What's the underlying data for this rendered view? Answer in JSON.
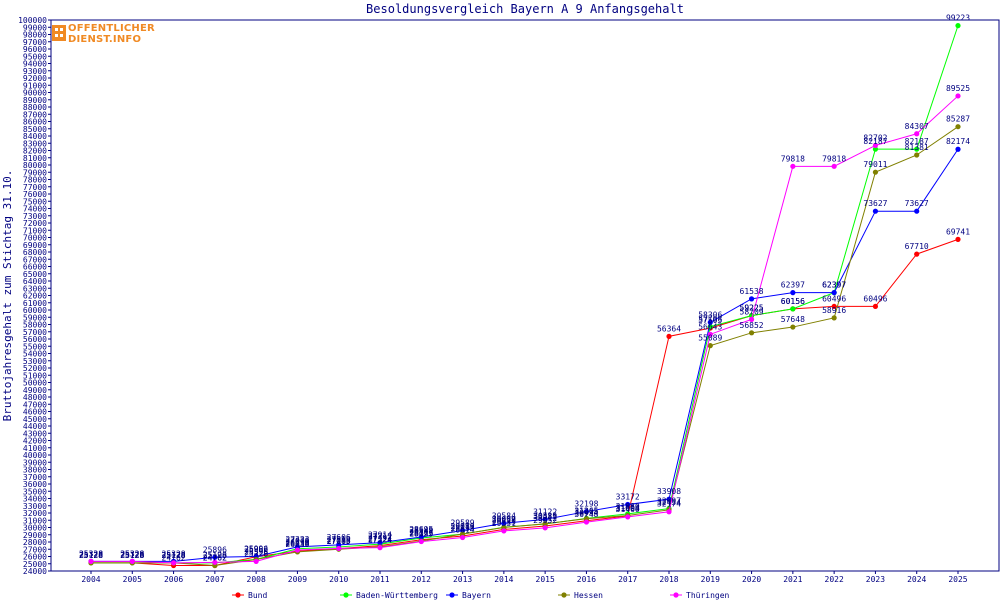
{
  "logo": {
    "line1": "OFFENTLICHER",
    "line2": "DIENST.INFO"
  },
  "chart_data": {
    "type": "line",
    "title": "Besoldungsvergleich Bayern A 9 Anfangsgehalt",
    "xlabel": "",
    "ylabel": "Bruttojahresgehalt zum Stichtag 31.10.",
    "ylim": [
      24000,
      100000
    ],
    "ytick_step": 1000,
    "grid": false,
    "legend_position": "bottom",
    "x": [
      "2004",
      "2005",
      "2006",
      "2007",
      "2008",
      "2009",
      "2010",
      "2011",
      "2012",
      "2013",
      "2014",
      "2015",
      "2016",
      "2017",
      "2018",
      "2019",
      "2020",
      "2021",
      "2022",
      "2023",
      "2024",
      "2025"
    ],
    "series": [
      {
        "name": "Bund",
        "color": "#ff0000",
        "values": [
          25128,
          25128,
          24762,
          24762,
          25962,
          26738,
          27086,
          27497,
          28307,
          28833,
          29735,
          30212,
          30934,
          31604,
          56364,
          57505,
          59225,
          60156,
          60496,
          60496,
          67710,
          69741
        ]
      },
      {
        "name": "Baden-Württemberg",
        "color": "#00ff00",
        "values": [
          25128,
          25128,
          25128,
          25128,
          25598,
          27070,
          27319,
          27712,
          28549,
          29089,
          30039,
          30489,
          31265,
          31880,
          32607,
          57708,
          59225,
          60156,
          62397,
          82187,
          82187,
          99223
        ]
      },
      {
        "name": "Bayern",
        "color": "#0000ff",
        "values": [
          25328,
          25328,
          25328,
          25896,
          25996,
          27333,
          27606,
          27914,
          28695,
          29589,
          30584,
          31122,
          32198,
          33172,
          33908,
          58306,
          61538,
          62397,
          62397,
          73627,
          73627,
          82174
        ]
      },
      {
        "name": "Hessen",
        "color": "#808000",
        "values": [
          25128,
          25128,
          25128,
          24762,
          25596,
          26630,
          27005,
          27324,
          28125,
          29110,
          29998,
          30525,
          31205,
          31663,
          32434,
          55089,
          56852,
          57648,
          58916,
          79011,
          81381,
          85287
        ]
      },
      {
        "name": "Thüringen",
        "color": "#ff00ff",
        "values": [
          25328,
          25328,
          25128,
          25196,
          25328,
          26890,
          27113,
          27224,
          28059,
          28614,
          29531,
          29952,
          30748,
          31460,
          32174,
          56643,
          58709,
          79818,
          79818,
          82702,
          84307,
          89525
        ]
      }
    ]
  }
}
